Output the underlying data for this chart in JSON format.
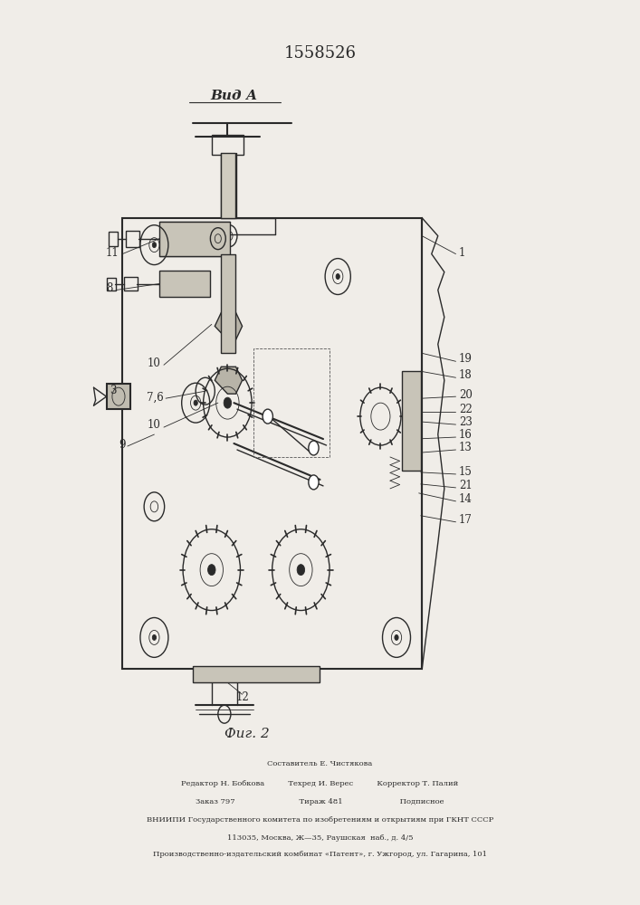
{
  "patent_number": "1558526",
  "view_label": "Вид А",
  "fig_label": "Фиг. 2",
  "bg_color": "#f0ede8",
  "line_color": "#2a2a2a",
  "footer_lines": [
    "Составитель Е. Чистякова",
    "Редактор Н. Бобкова          Техред И. Верес          Корректор Т. Палий",
    "Заказ 797                           Тираж 481                        Подписное",
    "ВНИИПИ Государственного комитета по изобретениям и открытиям при ГКНТ СССР",
    "113035, Москва, Ж—35, Раушская  наб., д. 4/5",
    "Производственно-издательский комбинат «Патент», г. Ужгород, ул. Гагарина, 101"
  ]
}
